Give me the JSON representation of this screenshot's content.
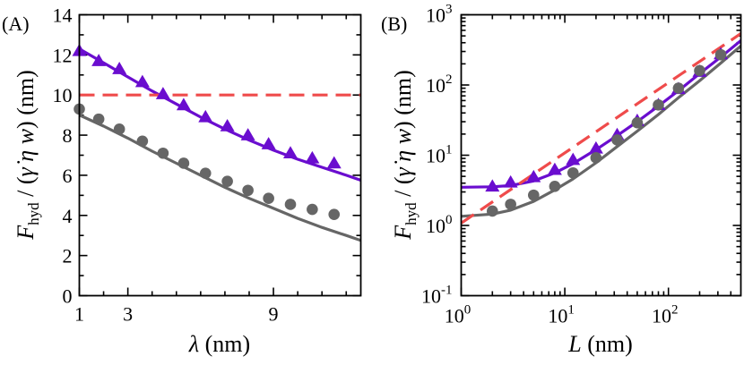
{
  "chart_data": [
    {
      "panel": "(A)",
      "type": "line",
      "xlabel": "λ (nm)",
      "ylabel": "F_hyd / (γ̇ηw) (nm)",
      "x_scale": "linear",
      "y_scale": "linear",
      "xlim": [
        1,
        12.6
      ],
      "ylim": [
        0,
        14
      ],
      "x_ticks": [
        1,
        3,
        9
      ],
      "x_tick_labels": [
        "1",
        "3",
        "9"
      ],
      "y_ticks": [
        0,
        2,
        4,
        6,
        8,
        10,
        12,
        14
      ],
      "y_tick_labels": [
        "0",
        "2",
        "4",
        "6",
        "8",
        "10",
        "12",
        "14"
      ],
      "series": [
        {
          "name": "triangles",
          "kind": "markers",
          "marker": "triangle",
          "color": "#6a0dcf",
          "x": [
            1.0,
            1.8,
            2.65,
            3.6,
            4.45,
            5.3,
            6.2,
            7.1,
            7.95,
            8.8,
            9.7,
            10.6,
            11.5
          ],
          "y": [
            12.2,
            11.7,
            11.3,
            10.65,
            10.05,
            9.5,
            8.9,
            8.45,
            8.0,
            7.55,
            7.1,
            6.85,
            6.6
          ]
        },
        {
          "name": "circles",
          "kind": "markers",
          "marker": "circle",
          "color": "#666666",
          "x": [
            1.0,
            1.8,
            2.65,
            3.6,
            4.45,
            5.3,
            6.2,
            7.1,
            7.95,
            8.8,
            9.7,
            10.6,
            11.5
          ],
          "y": [
            9.3,
            8.8,
            8.3,
            7.7,
            7.1,
            6.6,
            6.1,
            5.7,
            5.25,
            4.85,
            4.55,
            4.3,
            4.05
          ]
        },
        {
          "name": "purple fit",
          "kind": "line",
          "style": "solid",
          "color": "#6a0dcf",
          "x": [
            1.0,
            2.0,
            3.0,
            4.0,
            5.0,
            6.0,
            7.0,
            8.0,
            9.0,
            10.0,
            11.0,
            12.0,
            12.6
          ],
          "y": [
            12.3,
            11.6,
            10.9,
            10.2,
            9.55,
            8.9,
            8.3,
            7.75,
            7.25,
            6.8,
            6.4,
            6.0,
            5.75
          ]
        },
        {
          "name": "gray fit",
          "kind": "line",
          "style": "solid",
          "color": "#666666",
          "x": [
            1.0,
            2.0,
            3.0,
            4.0,
            5.0,
            6.0,
            7.0,
            8.0,
            9.0,
            10.0,
            11.0,
            12.0,
            12.6
          ],
          "y": [
            9.0,
            8.45,
            7.85,
            7.2,
            6.6,
            6.0,
            5.4,
            4.85,
            4.35,
            3.85,
            3.4,
            3.0,
            2.75
          ]
        },
        {
          "name": "red dashed",
          "kind": "line",
          "style": "dashed",
          "color": "#ef4b4b",
          "x": [
            1.0,
            12.6
          ],
          "y": [
            10.0,
            10.0
          ]
        }
      ]
    },
    {
      "panel": "(B)",
      "type": "line",
      "xlabel": "L (nm)",
      "ylabel": "F_hyd / (γ̇ηw) (nm)",
      "x_scale": "log",
      "y_scale": "log",
      "xlim": [
        1,
        500
      ],
      "ylim": [
        0.1,
        1000
      ],
      "x_ticks": [
        1,
        10,
        100
      ],
      "x_tick_labels": [
        [
          "10",
          "0"
        ],
        [
          "10",
          "1"
        ],
        [
          "10",
          "2"
        ]
      ],
      "y_ticks": [
        0.1,
        1,
        10,
        100,
        1000
      ],
      "y_tick_labels": [
        [
          "10",
          "-1"
        ],
        [
          "10",
          "0"
        ],
        [
          "10",
          "1"
        ],
        [
          "10",
          "2"
        ],
        [
          "10",
          "3"
        ]
      ],
      "series": [
        {
          "name": "triangles",
          "kind": "markers",
          "marker": "triangle",
          "color": "#6a0dcf",
          "x": [
            2,
            3,
            5,
            8,
            12,
            20,
            32,
            50,
            80,
            125,
            200,
            320
          ],
          "y": [
            3.6,
            4.1,
            4.9,
            6.2,
            8.6,
            12.5,
            19.5,
            31,
            52,
            88,
            155,
            275
          ]
        },
        {
          "name": "circles",
          "kind": "markers",
          "marker": "circle",
          "color": "#666666",
          "x": [
            2,
            3,
            5,
            8,
            12,
            20,
            32,
            50,
            80,
            125,
            200,
            320
          ],
          "y": [
            1.6,
            2.0,
            2.7,
            3.6,
            5.6,
            9.2,
            16.5,
            29,
            52,
            90,
            160,
            270
          ]
        },
        {
          "name": "purple fit",
          "kind": "line",
          "style": "solid",
          "color": "#6a0dcf",
          "x": [
            1,
            2,
            3,
            5,
            8,
            12,
            20,
            32,
            50,
            80,
            125,
            200,
            320,
            500
          ],
          "y": [
            3.5,
            3.55,
            3.7,
            4.3,
            5.6,
            7.6,
            12.0,
            19.0,
            30,
            50,
            83,
            145,
            250,
            430
          ]
        },
        {
          "name": "gray fit",
          "kind": "line",
          "style": "solid",
          "color": "#666666",
          "x": [
            1,
            2,
            3,
            5,
            8,
            12,
            20,
            32,
            50,
            80,
            125,
            200,
            320,
            500
          ],
          "y": [
            1.35,
            1.45,
            1.65,
            2.2,
            3.2,
            4.6,
            7.8,
            13.3,
            22,
            38,
            66,
            115,
            205,
            360
          ]
        },
        {
          "name": "red dashed",
          "kind": "line",
          "style": "dashed",
          "color": "#ef4b4b",
          "x": [
            1,
            500
          ],
          "y": [
            1.08,
            540
          ]
        }
      ]
    }
  ]
}
